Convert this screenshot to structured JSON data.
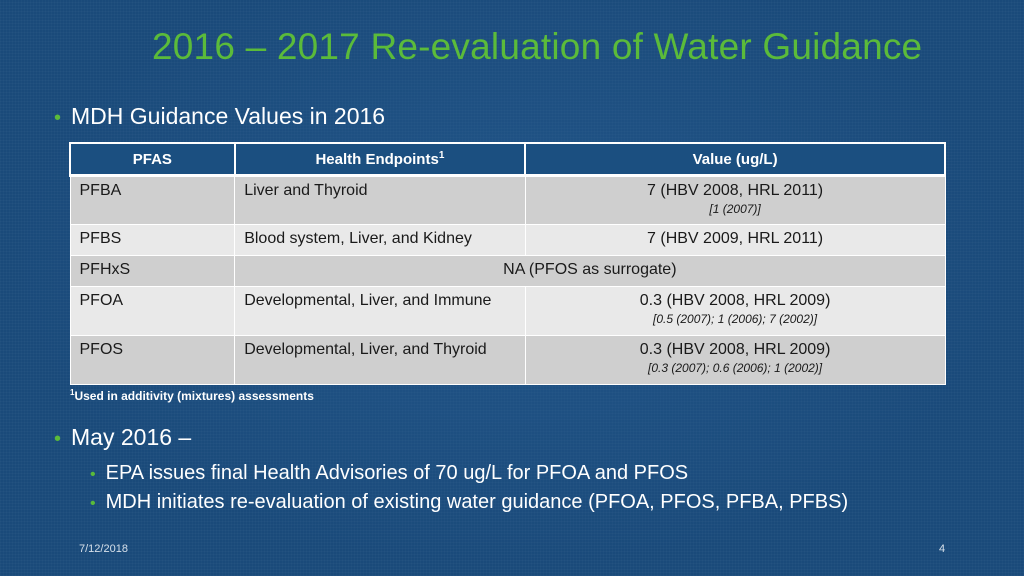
{
  "slide": {
    "title": "2016 – 2017 Re-evaluation of Water Guidance",
    "footer_date": "7/12/2018",
    "page_number": "4"
  },
  "bullets": {
    "first": "MDH Guidance Values in 2016",
    "second": "May 2016 –",
    "sub": [
      "EPA issues final Health Advisories of 70 ug/L for PFOA and PFOS",
      "MDH initiates re-evaluation of existing water guidance (PFOA, PFOS, PFBA, PFBS)"
    ],
    "bullet_glyph": "•"
  },
  "table": {
    "headers": {
      "pfas": "PFAS",
      "endpoints": "Health Endpoints",
      "endpoints_sup": "1",
      "value": "Value (ug/L)"
    },
    "rows": [
      {
        "pfas": "PFBA",
        "endpoints": "Liver and Thyroid",
        "value": "7 (HBV 2008, HRL 2011)",
        "sub": "[1 (2007)]"
      },
      {
        "pfas": "PFBS",
        "endpoints": "Blood system, Liver, and Kidney",
        "value": "7 (HBV 2009, HRL 2011)",
        "sub": ""
      },
      {
        "pfas": "PFHxS",
        "merged": "NA (PFOS as surrogate)"
      },
      {
        "pfas": "PFOA",
        "endpoints": "Developmental, Liver, and Immune",
        "value": "0.3 (HBV 2008, HRL 2009)",
        "sub": "[0.5 (2007);  1 (2006); 7 (2002)]"
      },
      {
        "pfas": "PFOS",
        "endpoints": "Developmental, Liver, and Thyroid",
        "value": "0.3 (HBV 2008, HRL 2009)",
        "sub": "[0.3 (2007);  0.6 (2006); 1 (2002)]"
      }
    ]
  },
  "footnote": {
    "sup": "1",
    "text": "Used in additivity (mixtures) assessments"
  },
  "colors": {
    "background": "#1a4a7a",
    "title_green": "#5bbb3a",
    "header_blue": "#1b4f80",
    "row_dark": "#cfcfcf",
    "row_light": "#e9e9e9"
  }
}
